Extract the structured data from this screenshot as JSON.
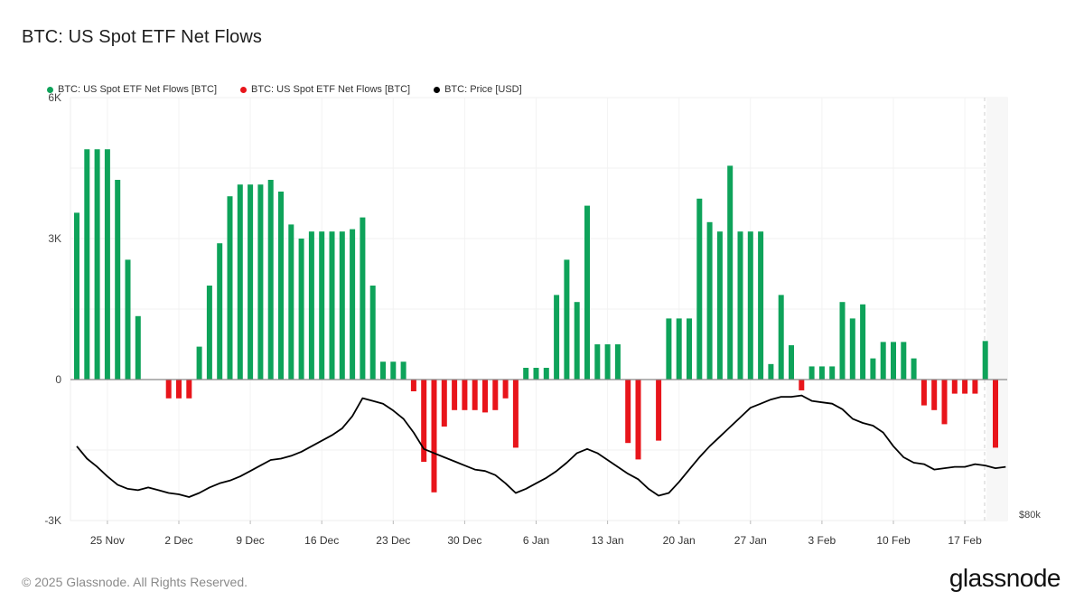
{
  "header": {
    "title": "BTC: US Spot ETF Net Flows"
  },
  "footer": {
    "copyright": "© 2025 Glassnode. All Rights Reserved.",
    "brand": "glassnode"
  },
  "chart_data": {
    "type": "bar",
    "title": "BTC: US Spot ETF Net Flows",
    "legend": [
      {
        "label": "BTC: US Spot ETF Net Flows [BTC]",
        "color": "#0ea35a"
      },
      {
        "label": "BTC: US Spot ETF Net Flows [BTC]",
        "color": "#e8151b"
      },
      {
        "label": "BTC: Price [USD]",
        "color": "#000000"
      }
    ],
    "legend_position": "top-left",
    "grid": true,
    "y_left": {
      "ticks": [
        -3000,
        0,
        3000,
        6000
      ],
      "tick_labels": [
        "-3K",
        "0",
        "3K",
        "6K"
      ],
      "range": [
        -3000,
        6000
      ]
    },
    "y_right": {
      "tick_labels": [
        "$80k"
      ]
    },
    "x_tick_labels": [
      "25 Nov",
      "2 Dec",
      "9 Dec",
      "16 Dec",
      "23 Dec",
      "30 Dec",
      "6 Jan",
      "13 Jan",
      "20 Jan",
      "27 Jan",
      "3 Feb",
      "10 Feb",
      "17 Feb"
    ],
    "x_tick_day_index": [
      3,
      10,
      17,
      24,
      31,
      38,
      45,
      52,
      59,
      66,
      73,
      80,
      87
    ],
    "start_date": "22 Nov",
    "flows": [
      3550,
      4900,
      4900,
      4900,
      4250,
      2550,
      1350,
      0,
      0,
      -400,
      -400,
      -400,
      700,
      2000,
      2900,
      3900,
      4150,
      4150,
      4150,
      4250,
      4000,
      3300,
      3000,
      3150,
      3150,
      3150,
      3150,
      3200,
      3450,
      2000,
      380,
      380,
      380,
      -250,
      -1750,
      -2400,
      -1000,
      -650,
      -650,
      -650,
      -700,
      -650,
      -400,
      -1450,
      250,
      250,
      250,
      1800,
      2550,
      1650,
      3700,
      750,
      750,
      750,
      -1350,
      -1700,
      0,
      -1300,
      1300,
      1300,
      1300,
      3850,
      3350,
      3150,
      4550,
      3150,
      3150,
      3150,
      330,
      1800,
      730,
      -230,
      280,
      280,
      280,
      1650,
      1300,
      1600,
      450,
      800,
      800,
      800,
      450,
      -550,
      -650,
      -950,
      -300,
      -300,
      -300,
      820,
      -1450
    ],
    "price_series_index": [
      100,
      99.1,
      98.5,
      97.8,
      97.2,
      96.9,
      96.8,
      97.0,
      96.8,
      96.6,
      96.5,
      96.3,
      96.6,
      97.0,
      97.3,
      97.5,
      97.8,
      98.2,
      98.6,
      99.0,
      99.1,
      99.3,
      99.6,
      100.0,
      100.4,
      100.8,
      101.3,
      102.2,
      103.5,
      103.3,
      103.1,
      102.6,
      102.0,
      101.0,
      99.8,
      99.5,
      99.2,
      98.9,
      98.6,
      98.3,
      98.2,
      97.9,
      97.3,
      96.6,
      96.9,
      97.3,
      97.7,
      98.2,
      98.8,
      99.5,
      99.8,
      99.5,
      99.0,
      98.5,
      98.0,
      97.6,
      96.9,
      96.4,
      96.6,
      97.4,
      98.3,
      99.2,
      100.0,
      100.7,
      101.4,
      102.1,
      102.8,
      103.1,
      103.4,
      103.6,
      103.6,
      103.7,
      103.3,
      103.2,
      103.1,
      102.7,
      102.0,
      101.7,
      101.5,
      101.0,
      100.0,
      99.2,
      98.8,
      98.7,
      98.3,
      98.4,
      98.5,
      98.5,
      98.7,
      98.6,
      98.4,
      98.5
    ]
  }
}
